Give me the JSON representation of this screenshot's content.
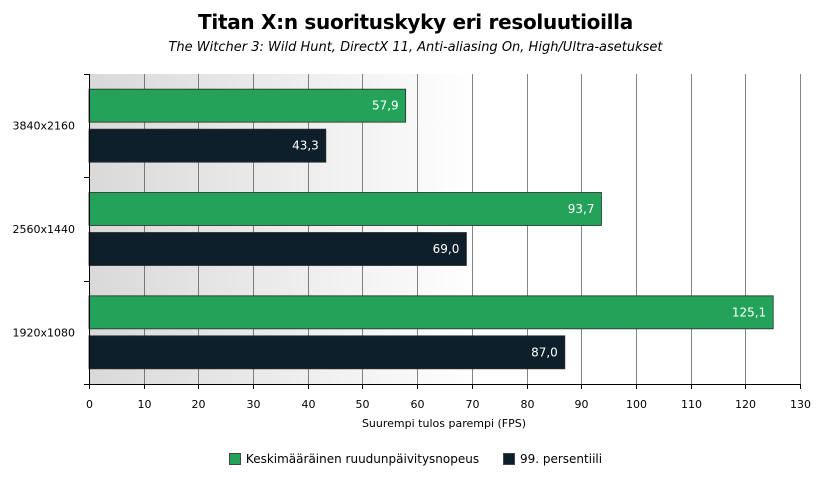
{
  "chart_data": {
    "type": "bar",
    "orientation": "horizontal",
    "title": "Titan X:n suorituskyky eri resoluutioilla",
    "subtitle": "The Witcher 3: Wild Hunt, DirectX 11, Anti-aliasing On, High/Ultra-asetukset",
    "xlabel": "Suurempi tulos parempi (FPS)",
    "ylabel": "",
    "xlim": [
      0,
      130
    ],
    "xticks": [
      0,
      10,
      20,
      30,
      40,
      50,
      60,
      70,
      80,
      90,
      100,
      110,
      120,
      130
    ],
    "categories": [
      "3840x2160",
      "2560x1440",
      "1920x1080"
    ],
    "series": [
      {
        "name": "Keskimääräinen ruudunpäivitysnopeus",
        "color": "#23a35a",
        "values": [
          57.9,
          93.7,
          125.1
        ],
        "labels": [
          "57,9",
          "93,7",
          "125,1"
        ]
      },
      {
        "name": "99. persentiili",
        "color": "#0d1f2a",
        "values": [
          43.3,
          69.0,
          87.0
        ],
        "labels": [
          "43,3",
          "69,0",
          "87,0"
        ]
      }
    ],
    "grid": true,
    "legend_position": "bottom"
  }
}
